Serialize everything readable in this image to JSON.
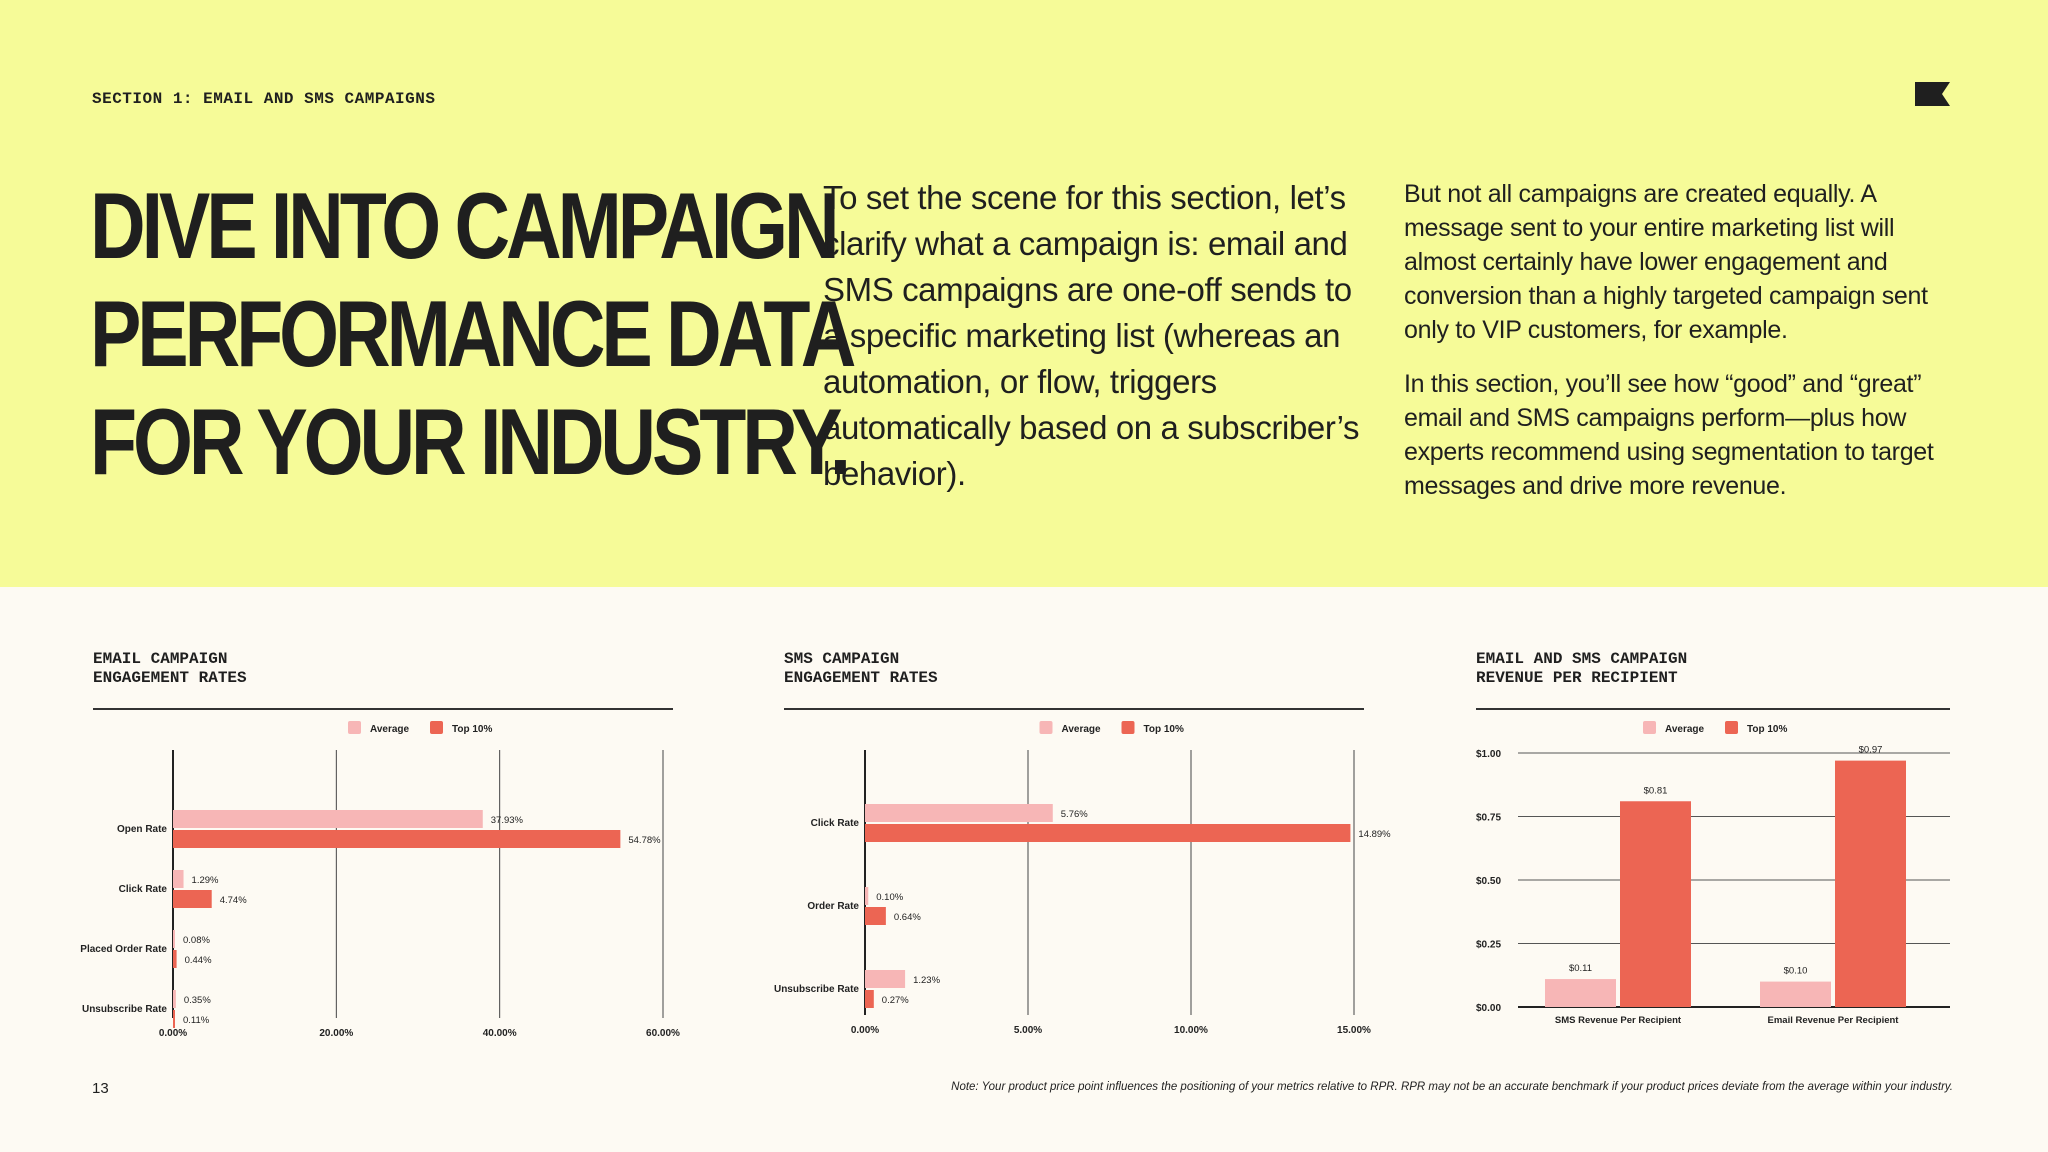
{
  "header": {
    "section_label": "SECTION 1: EMAIL AND SMS CAMPAIGNS",
    "headline": [
      "DIVE INTO CAMPAIGN",
      "PERFORMANCE DATA",
      "FOR YOUR INDUSTRY."
    ],
    "intro_text": "To set the scene for this section, let’s clarify what a campaign is: email and SMS campaigns are one-off sends to a specific marketing list (whereas an automation, or flow, triggers automatically based on a subscriber’s behavior).",
    "side_paragraphs": [
      "But not all campaigns are created equally. A message sent to your entire marketing list will almost certainly have lower engagement and conversion than a highly targeted campaign sent only to VIP customers, for example.",
      "In this section, you’ll see how “good” and “great” email and SMS campaigns perform—plus how experts recommend using segmentation to target messages and drive more revenue."
    ],
    "logo_icon": "flag-icon"
  },
  "colors": {
    "hero_bg": "#f6fb98",
    "page_bg": "#fdfaf3",
    "average": "#f7b6b6",
    "top10": "#ec6553"
  },
  "chart_data": [
    {
      "type": "bar",
      "orientation": "horizontal",
      "title": [
        "EMAIL CAMPAIGN",
        "ENGAGEMENT RATES"
      ],
      "legend_position": "top-center",
      "categories": [
        "Open Rate",
        "Click Rate",
        "Placed Order Rate",
        "Unsubscribe Rate"
      ],
      "series": [
        {
          "name": "Average",
          "values": [
            37.93,
            1.29,
            0.08,
            0.35
          ],
          "labels": [
            "37.93%",
            "1.29%",
            "0.08%",
            "0.35%"
          ]
        },
        {
          "name": "Top 10%",
          "values": [
            54.78,
            4.74,
            0.44,
            0.11
          ],
          "labels": [
            "54.78%",
            "4.74%",
            "0.44%",
            "0.11%"
          ]
        }
      ],
      "xlim": [
        0,
        60
      ],
      "ticks": [
        0,
        20,
        40,
        60
      ],
      "tick_labels": [
        "0.00%",
        "20.00%",
        "40.00%",
        "60.00%"
      ],
      "grid": true
    },
    {
      "type": "bar",
      "orientation": "horizontal",
      "title": [
        "SMS CAMPAIGN",
        "ENGAGEMENT RATES"
      ],
      "legend_position": "top-center",
      "categories": [
        "Click Rate",
        "Order Rate",
        "Unsubscribe Rate"
      ],
      "series": [
        {
          "name": "Average",
          "values": [
            5.76,
            0.1,
            1.23
          ],
          "labels": [
            "5.76%",
            "0.10%",
            "1.23%"
          ]
        },
        {
          "name": "Top 10%",
          "values": [
            14.89,
            0.64,
            0.27
          ],
          "labels": [
            "14.89%",
            "0.64%",
            "0.27%"
          ]
        }
      ],
      "xlim": [
        0,
        15
      ],
      "ticks": [
        0,
        5,
        10,
        15
      ],
      "tick_labels": [
        "0.00%",
        "5.00%",
        "10.00%",
        "15.00%"
      ],
      "grid": true
    },
    {
      "type": "bar",
      "orientation": "vertical",
      "title": [
        "EMAIL AND SMS CAMPAIGN",
        "REVENUE PER RECIPIENT"
      ],
      "legend_position": "top-center",
      "categories": [
        "SMS Revenue Per Recipient",
        "Email Revenue Per Recipient"
      ],
      "series": [
        {
          "name": "Average",
          "values": [
            0.11,
            0.1
          ],
          "labels": [
            "$0.11",
            "$0.10"
          ]
        },
        {
          "name": "Top 10%",
          "values": [
            0.81,
            0.97
          ],
          "labels": [
            "$0.81",
            "$0.97"
          ]
        }
      ],
      "ylim": [
        0,
        1
      ],
      "ticks": [
        0,
        0.25,
        0.5,
        0.75,
        1
      ],
      "tick_labels": [
        "$0.00",
        "$0.25",
        "$0.50",
        "$0.75",
        "$1.00"
      ],
      "grid": true
    }
  ],
  "footer": {
    "page_number": "13",
    "note": "Note: Your product price point influences the positioning of your metrics relative to RPR. RPR may not be an accurate benchmark if your product prices deviate from the average within your industry."
  }
}
